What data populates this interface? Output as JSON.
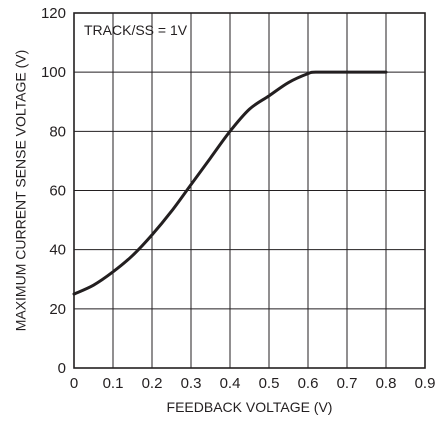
{
  "chart_data": {
    "type": "line",
    "title": "",
    "xlabel": "FEEDBACK VOLTAGE (V)",
    "ylabel": "MAXIMUM CURRENT SENSE VOLTAGE (V)",
    "annotation": "TRACK/SS = 1V",
    "xlim": [
      0,
      0.9
    ],
    "ylim": [
      0,
      120
    ],
    "x_ticks": [
      "0",
      "0.1",
      "0.2",
      "0.3",
      "0.4",
      "0.5",
      "0.6",
      "0.7",
      "0.8",
      "0.9"
    ],
    "y_ticks": [
      "0",
      "20",
      "40",
      "60",
      "80",
      "100",
      "120"
    ],
    "grid": true,
    "series": [
      {
        "color": "#231f20",
        "points": [
          [
            0.0,
            25
          ],
          [
            0.05,
            28
          ],
          [
            0.1,
            32.5
          ],
          [
            0.15,
            38
          ],
          [
            0.2,
            45
          ],
          [
            0.25,
            53
          ],
          [
            0.3,
            62
          ],
          [
            0.35,
            71
          ],
          [
            0.4,
            80
          ],
          [
            0.45,
            87.5
          ],
          [
            0.5,
            92
          ],
          [
            0.55,
            96.5
          ],
          [
            0.6,
            99.5
          ],
          [
            0.62,
            100
          ],
          [
            0.7,
            100
          ],
          [
            0.8,
            100
          ]
        ]
      }
    ]
  }
}
